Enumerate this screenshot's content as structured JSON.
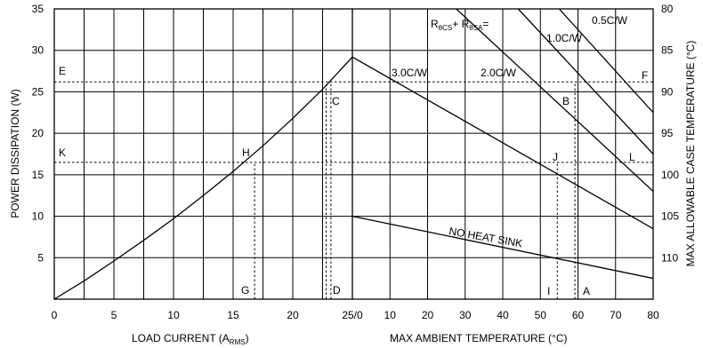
{
  "chart_data": {
    "type": "line",
    "left_panel": {
      "xlabel": "LOAD CURRENT (A",
      "xlabel_sub": "RMS",
      "xlabel_end": ")",
      "ylabel": "POWER DISSIPATION (W)",
      "x_ticks": [
        "0",
        "5",
        "10",
        "15",
        "20"
      ],
      "x_ticks_values": [
        0,
        5,
        10,
        15,
        20
      ],
      "x_tick_shared": "25/0",
      "xlim": [
        0,
        25
      ],
      "y_ticks": [
        "5",
        "10",
        "15",
        "20",
        "25",
        "30",
        "35"
      ],
      "y_ticks_values": [
        5,
        10,
        15,
        20,
        25,
        30,
        35
      ],
      "ylim": [
        0,
        35
      ],
      "grid": true,
      "series": [
        {
          "x": [
            0,
            2.5,
            5,
            7.5,
            10,
            12.5,
            15,
            17.5,
            20,
            22.5,
            25
          ],
          "y": [
            0,
            2.2,
            4.6,
            7.1,
            9.7,
            12.5,
            15.4,
            18.5,
            21.8,
            25.3,
            29.2
          ]
        }
      ]
    },
    "right_panel": {
      "xlabel": "MAX AMBIENT TEMPERATURE (°C)",
      "ylabel": "MAX ALLOWABLE CASE TEMPERATURE (°C)",
      "x_ticks": [
        "10",
        "20",
        "30",
        "40",
        "50",
        "60",
        "70",
        "80"
      ],
      "x_ticks_values": [
        10,
        20,
        30,
        40,
        50,
        60,
        70,
        80
      ],
      "xlim": [
        0,
        80
      ],
      "y_ticks": [
        "80",
        "85",
        "90",
        "95",
        "100",
        "105",
        "110"
      ],
      "y_ticks_values": [
        80,
        85,
        90,
        95,
        100,
        105,
        110
      ],
      "y_ticks_power": [
        35,
        30,
        25,
        20,
        15,
        10,
        5
      ],
      "grid": true,
      "legend_title": "R",
      "legend_title_sub1": "θCS",
      "legend_title_mid": "+ R",
      "legend_title_sub2": "θSA",
      "legend_title_end": "=",
      "series": [
        {
          "label": "0.5C/W",
          "x": [
            55,
            80
          ],
          "y": [
            35,
            22.5
          ]
        },
        {
          "label": "1.0C/W",
          "x": [
            44.1,
            80
          ],
          "y": [
            35,
            17.5
          ]
        },
        {
          "label": "2.0C/W",
          "x": [
            0,
            80
          ],
          "y": [
            46.6,
            13.0
          ]
        },
        {
          "label": "3.0C/W",
          "x": [
            0,
            80
          ],
          "y": [
            29.2,
            8.5
          ]
        },
        {
          "label": "NO HEAT SINK",
          "x": [
            0,
            80
          ],
          "y": [
            10.0,
            2.5
          ]
        }
      ]
    },
    "points": [
      {
        "label": "E",
        "x": -24.5,
        "y": 26.2
      },
      {
        "label": "F",
        "x": 78.5,
        "y": 26.2
      },
      {
        "label": "C",
        "x": 23.9,
        "y": 24.0
      },
      {
        "label": "B",
        "x": 57.5,
        "y": 24.0
      },
      {
        "label": "K",
        "x": -24.5,
        "y": 16.5
      },
      {
        "label": "H",
        "x": 16.2,
        "y": 16.5
      },
      {
        "label": "J",
        "x": 56.0,
        "y": 16.5
      },
      {
        "label": "L",
        "x": 77.5,
        "y": 16.5
      },
      {
        "label": "G",
        "x": 16.2,
        "y": 1.7
      },
      {
        "label": "D",
        "x": 23.9,
        "y": 1.7
      },
      {
        "label": "I",
        "x": 52.3,
        "y": 1.7
      },
      {
        "label": "A",
        "x": 60.2,
        "y": 1.7
      }
    ],
    "dotted_lines": [
      {
        "from": [
          0,
          26.2
        ],
        "to": [
          80,
          26.2
        ]
      },
      {
        "from": [
          0,
          16.5
        ],
        "to": [
          80,
          16.5
        ]
      },
      {
        "from": [
          22.8,
          0
        ],
        "to": [
          22.8,
          25.9
        ]
      },
      {
        "from": [
          23.2,
          0
        ],
        "to": [
          23.2,
          26.2
        ]
      },
      {
        "from": [
          16.8,
          0
        ],
        "to": [
          16.8,
          16.5
        ]
      },
      {
        "from": [
          54.5,
          0
        ],
        "to": [
          54.5,
          16.5
        ]
      },
      {
        "from": [
          59.2,
          0
        ],
        "to": [
          59.2,
          26.2
        ]
      }
    ]
  }
}
